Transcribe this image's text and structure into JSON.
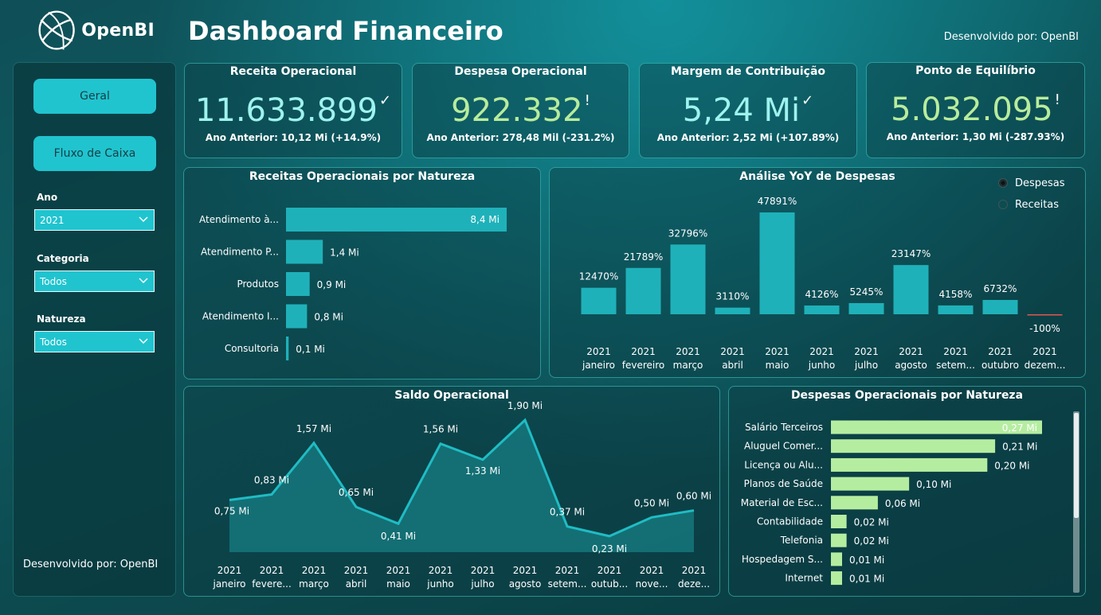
{
  "header": {
    "logo_text": "OpenBI",
    "title": "Dashboard Financeiro",
    "developer": "Desenvolvido por: OpenBI"
  },
  "sidebar": {
    "nav": [
      {
        "label": "Geral"
      },
      {
        "label": "Fluxo de Caixa"
      }
    ],
    "filters": [
      {
        "label": "Ano",
        "value": "2021"
      },
      {
        "label": "Categoria",
        "value": "Todos"
      },
      {
        "label": "Natureza",
        "value": "Todos"
      }
    ],
    "developer": "Desenvolvido por: OpenBI"
  },
  "kpis": [
    {
      "title": "Receita Operacional",
      "value": "11.633.899",
      "mark": "✓",
      "sub": "Ano Anterior: 10,12 Mi (+14.9%)",
      "color": "#9ff3ee"
    },
    {
      "title": "Despesa Operacional",
      "value": "922.332",
      "mark": "!",
      "sub": "Ano Anterior: 278,48 Mil (-231.2%)",
      "color": "#b8ec9c"
    },
    {
      "title": "Margem de Contribuição",
      "value": "5,24 Mi",
      "mark": "✓",
      "sub": "Ano Anterior: 2,52 Mi (+107.89%)",
      "color": "#9ff3ee"
    },
    {
      "title": "Ponto de Equilíbrio",
      "value": "5.032.095",
      "mark": "!",
      "sub": "Ano Anterior: 1,30 Mi (-287.93%)",
      "color": "#b8ec9c"
    }
  ],
  "receitas_natureza": {
    "title": "Receitas Operacionais por Natureza",
    "chart_data": {
      "type": "bar",
      "orientation": "horizontal",
      "categories": [
        "Atendimento à...",
        "Atendimento P...",
        "Produtos",
        "Atendimento I...",
        "Consultoria"
      ],
      "values": [
        8.4,
        1.4,
        0.9,
        0.8,
        0.1
      ],
      "labels": [
        "8,4 Mi",
        "1,4 Mi",
        "0,9 Mi",
        "0,8 Mi",
        "0,1 Mi"
      ],
      "bar_color": "#1fb1b9"
    }
  },
  "yoy": {
    "title": "Análise YoY de Despesas",
    "legend": [
      {
        "label": "Despesas",
        "selected": true
      },
      {
        "label": "Receitas",
        "selected": false
      }
    ],
    "chart_data": {
      "type": "bar",
      "categories": [
        "2021 janeiro",
        "2021 fevereiro",
        "2021 março",
        "2021 abril",
        "2021 maio",
        "2021 junho",
        "2021 julho",
        "2021 agosto",
        "2021 setem...",
        "2021 outubro",
        "2021 dezem..."
      ],
      "values": [
        12470,
        21789,
        32796,
        3110,
        47891,
        4126,
        5245,
        23147,
        4158,
        6732,
        -100
      ],
      "labels": [
        "12470%",
        "21789%",
        "32796%",
        "3110%",
        "47891%",
        "4126%",
        "5245%",
        "23147%",
        "4158%",
        "6732%",
        "-100%"
      ],
      "bar_color": "#1fb1b9",
      "negative_color": "#e0564f"
    }
  },
  "saldo": {
    "title": "Saldo Operacional",
    "chart_data": {
      "type": "area",
      "categories": [
        "2021 janeiro",
        "2021 fevere...",
        "2021 março",
        "2021 abril",
        "2021 maio",
        "2021 junho",
        "2021 julho",
        "2021 agosto",
        "2021 setem...",
        "2021 outub...",
        "2021 nove...",
        "2021 deze..."
      ],
      "values": [
        0.75,
        0.83,
        1.57,
        0.65,
        0.41,
        1.56,
        1.33,
        1.9,
        0.37,
        0.23,
        0.5,
        0.6
      ],
      "labels": [
        "0,75 Mi",
        "0,83 Mi",
        "1,57 Mi",
        "0,65 Mi",
        "0,41 Mi",
        "1,56 Mi",
        "1,33 Mi",
        "1,90 Mi",
        "0,37 Mi",
        "0,23 Mi",
        "0,50 Mi",
        "0,60 Mi"
      ],
      "line_color": "#20bcc4"
    }
  },
  "despesas_natureza": {
    "title": "Despesas Operacionais por Natureza",
    "chart_data": {
      "type": "bar",
      "orientation": "horizontal",
      "categories": [
        "Salário Terceiros",
        "Aluguel Comer...",
        "Licença ou Alu...",
        "Planos de Saúde",
        "Material de Esc...",
        "Contabilidade",
        "Telefonia",
        "Hospedagem S...",
        "Internet"
      ],
      "values": [
        0.27,
        0.21,
        0.2,
        0.1,
        0.06,
        0.02,
        0.02,
        0.01,
        0.01
      ],
      "labels": [
        "0,27 Mi",
        "0,21 Mi",
        "0,20 Mi",
        "0,10 Mi",
        "0,06 Mi",
        "0,02 Mi",
        "0,02 Mi",
        "0,01 Mi",
        "0,01 Mi"
      ],
      "bar_color": "#b5eda0"
    }
  }
}
